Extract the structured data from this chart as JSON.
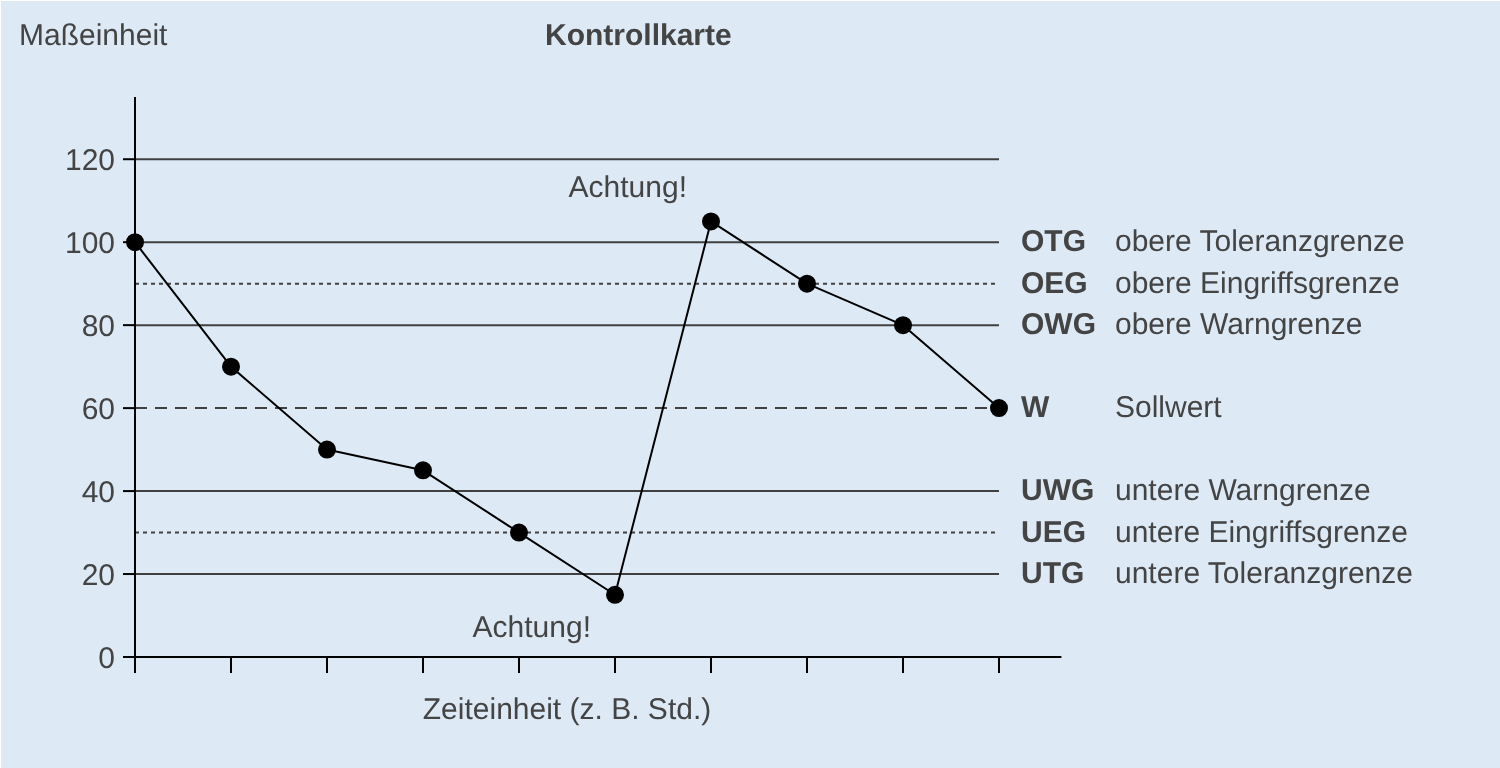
{
  "chart_data": {
    "type": "line",
    "title": "Kontrollkarte",
    "ylabel": "Maßeinheit",
    "xlabel": "Zeiteinheit (z. B. Std.)",
    "categories": [
      null,
      null,
      null,
      null,
      null,
      null,
      null,
      null,
      null,
      null
    ],
    "series": [
      {
        "color": "#000000",
        "values": [
          100,
          70,
          50,
          45,
          30,
          15,
          105,
          90,
          80,
          60
        ]
      }
    ],
    "marker": "circle",
    "line_style": "solid",
    "ylim": [
      0,
      135
    ],
    "yticks": [
      0,
      20,
      40,
      60,
      80,
      100,
      120
    ],
    "tick_labels": "y",
    "grid": false,
    "ref_lines": [
      {
        "axis": "y",
        "value": 120,
        "label": null,
        "color": "#404040",
        "line_style": "solid"
      },
      {
        "axis": "y",
        "value": 100,
        "label": "OTG obere Toleranzgrenze",
        "color": "#404040",
        "line_style": "solid"
      },
      {
        "axis": "y",
        "value": 90,
        "label": "OEG obere Eingriffsgrenze",
        "color": "#404040",
        "line_style": "dotted"
      },
      {
        "axis": "y",
        "value": 80,
        "label": "OWG obere Warngrenze",
        "color": "#404040",
        "line_style": "solid"
      },
      {
        "axis": "y",
        "value": 60,
        "label": "W Sollwert",
        "color": "#404040",
        "line_style": "dashed"
      },
      {
        "axis": "y",
        "value": 40,
        "label": "UWG untere Warngrenze",
        "color": "#404040",
        "line_style": "solid"
      },
      {
        "axis": "y",
        "value": 30,
        "label": "UEG untere Eingriffsgrenze",
        "color": "#404040",
        "line_style": "dotted"
      },
      {
        "axis": "y",
        "value": 20,
        "label": "UTG untere Toleranzgrenze",
        "color": "#404040",
        "line_style": "solid"
      }
    ],
    "annotations": [
      "Achtung!",
      "Achtung!"
    ]
  }
}
